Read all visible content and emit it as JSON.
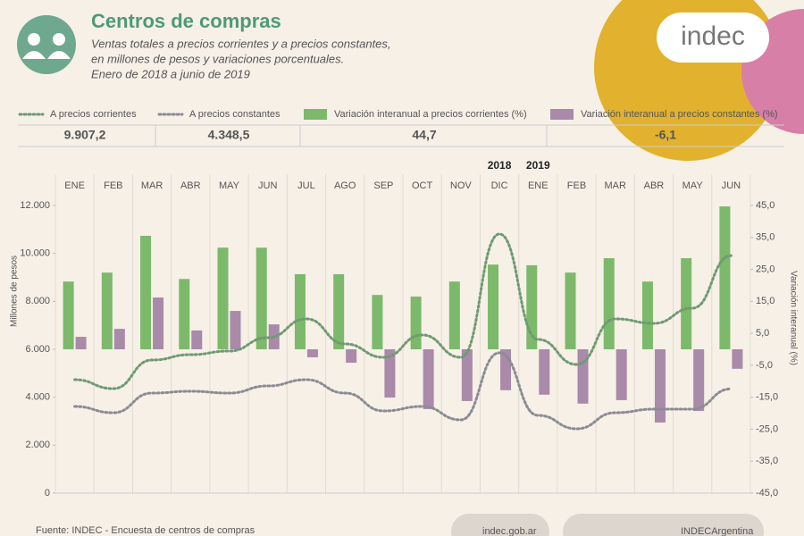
{
  "chart_data": {
    "type": "bar",
    "title": "Centros de compras",
    "subtitle": [
      "Ventas totales a precios corrientes y a precios constantes,",
      "en millones de pesos y variaciones porcentuales.",
      "Enero de 2018 a junio de 2019"
    ],
    "logo": "indec",
    "categories": [
      "ENE",
      "FEB",
      "MAR",
      "ABR",
      "MAY",
      "JUN",
      "JUL",
      "AGO",
      "SEP",
      "OCT",
      "NOV",
      "DIC",
      "ENE",
      "FEB",
      "MAR",
      "ABR",
      "MAY",
      "JUN"
    ],
    "years": [
      "2018",
      "2019"
    ],
    "series": [
      {
        "name": "A precios corrientes",
        "type": "line",
        "color": "#6f9a72",
        "summary": "9.907,2",
        "values": [
          4733,
          4360,
          5553,
          5777,
          5926,
          6485,
          7268,
          6224,
          5665,
          6597,
          5665,
          10809,
          6411,
          5367,
          7268,
          7082,
          7715,
          9907.2
        ]
      },
      {
        "name": "A precios constantes",
        "type": "line",
        "color": "#8a8c94",
        "summary": "4.348,5",
        "values": [
          3615,
          3354,
          4174,
          4249,
          4174,
          4472,
          4733,
          4174,
          3429,
          3615,
          3056,
          5852,
          3243,
          2684,
          3354,
          3503,
          3503,
          4348.5
        ]
      },
      {
        "name": "Variación interanual a precios corrientes (%)",
        "type": "bar",
        "axis": "y2",
        "color": "#7cb96b",
        "summary": "44,7",
        "values": [
          21.2,
          24,
          35.5,
          22,
          31.8,
          31.8,
          23.5,
          23.5,
          17,
          16.5,
          21.2,
          26.5,
          26.3,
          24,
          28.5,
          21.2,
          28.5,
          44.7
        ]
      },
      {
        "name": "Variación interanual a precios constantes (%)",
        "type": "bar",
        "axis": "y2",
        "color": "#a98aa9",
        "summary": "-6,1",
        "values": [
          3.9,
          6.4,
          16.2,
          5.9,
          12,
          7.8,
          -2.5,
          -4.2,
          -15.1,
          -18.7,
          -16.2,
          -12.8,
          -14.2,
          -17,
          -15.9,
          -22.9,
          -19.3,
          -6.1
        ]
      }
    ],
    "ylabel": "Millones de pesos",
    "y2label": "Variación interanual (%)",
    "ylim": [
      0,
      12000
    ],
    "yticks": [
      0,
      {
        "value": 2000,
        "label": "2.000"
      },
      {
        "value": 4000,
        "label": "4.000"
      },
      {
        "value": 6000,
        "label": "6.000"
      },
      {
        "value": 8000,
        "label": "8.000"
      },
      {
        "value": 10000,
        "label": "10.000"
      },
      {
        "value": 12000,
        "label": "12.000"
      }
    ],
    "y2lim": [
      -45,
      45
    ],
    "y2ticks": [
      {
        "value": -45,
        "label": "-45,0"
      },
      {
        "value": -35,
        "label": "-35,0"
      },
      {
        "value": -25,
        "label": "-25,0"
      },
      {
        "value": -15,
        "label": "-15,0"
      },
      {
        "value": -5,
        "label": "-5,0"
      },
      {
        "value": 5,
        "label": "5,0"
      },
      {
        "value": 15,
        "label": "15,0"
      },
      {
        "value": 25,
        "label": "25,0"
      },
      {
        "value": 35,
        "label": "35,0"
      },
      {
        "value": 45,
        "label": "45,0"
      }
    ],
    "source": "Fuente:  INDEC - Encuesta de centros de compras",
    "website": "indec.gob.ar",
    "social": "INDECArgentina"
  }
}
